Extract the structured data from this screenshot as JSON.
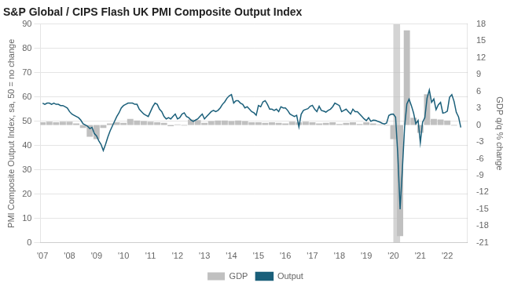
{
  "chart_data": {
    "type": "bar",
    "title": "S&P Global / CIPS Flash UK PMI Composite Output Index",
    "y_label": "PMI Composite Output Index, sa, 50 = no change",
    "y2_label": "GDP q/q % change",
    "xlim": [
      2006.92,
      2022.75
    ],
    "xticks": [
      {
        "value": 2007,
        "label": "'07"
      },
      {
        "value": 2008,
        "label": "'08"
      },
      {
        "value": 2009,
        "label": "'09"
      },
      {
        "value": 2010,
        "label": "'10"
      },
      {
        "value": 2011,
        "label": "'11"
      },
      {
        "value": 2012,
        "label": "'12"
      },
      {
        "value": 2013,
        "label": "'13"
      },
      {
        "value": 2014,
        "label": "'14"
      },
      {
        "value": 2015,
        "label": "'15"
      },
      {
        "value": 2016,
        "label": "'16"
      },
      {
        "value": 2017,
        "label": "'17"
      },
      {
        "value": 2018,
        "label": "'18"
      },
      {
        "value": 2019,
        "label": "'19"
      },
      {
        "value": 2020,
        "label": "'20"
      },
      {
        "value": 2021,
        "label": "'21"
      },
      {
        "value": 2022,
        "label": "'22"
      }
    ],
    "ylim": [
      0,
      90
    ],
    "yticks": [
      0,
      10,
      20,
      30,
      40,
      50,
      60,
      70,
      80,
      90
    ],
    "y2lim": [
      -21,
      18
    ],
    "y2ticks": [
      -21,
      -18,
      -15,
      -12,
      -9,
      -6,
      -3,
      0,
      3,
      6,
      9,
      12,
      15,
      18
    ],
    "grid": "y",
    "legend": "bottom",
    "shaded_x_range": [
      2020.0,
      2020.25
    ],
    "series": [
      {
        "name": "GDP",
        "type": "bar",
        "color": "#c0c0c0",
        "axis": "y2",
        "x": [
          2007.0,
          2007.25,
          2007.5,
          2007.75,
          2008.0,
          2008.25,
          2008.5,
          2008.75,
          2009.0,
          2009.25,
          2009.5,
          2009.75,
          2010.0,
          2010.25,
          2010.5,
          2010.75,
          2011.0,
          2011.25,
          2011.5,
          2011.75,
          2012.0,
          2012.25,
          2012.5,
          2012.75,
          2013.0,
          2013.25,
          2013.5,
          2013.75,
          2014.0,
          2014.25,
          2014.5,
          2014.75,
          2015.0,
          2015.25,
          2015.5,
          2015.75,
          2016.0,
          2016.25,
          2016.5,
          2016.75,
          2017.0,
          2017.25,
          2017.5,
          2017.75,
          2018.0,
          2018.25,
          2018.5,
          2018.75,
          2019.0,
          2019.25,
          2019.5,
          2019.75,
          2020.0,
          2020.25,
          2020.5,
          2020.75,
          2021.0,
          2021.25,
          2021.5,
          2021.75,
          2022.0,
          2022.25
        ],
        "values": [
          0.5,
          0.6,
          0.5,
          0.6,
          0.6,
          0.3,
          -0.5,
          -2.1,
          -2.5,
          -0.5,
          0.3,
          0.5,
          0.4,
          1.1,
          0.8,
          0.7,
          0.6,
          0.5,
          0.4,
          -0.2,
          0.1,
          -0.1,
          1.0,
          0.9,
          0.4,
          0.7,
          0.8,
          0.8,
          0.7,
          0.8,
          0.7,
          0.5,
          0.5,
          0.4,
          0.5,
          0.4,
          0.3,
          0.6,
          0.5,
          0.6,
          0.5,
          0.3,
          0.4,
          0.5,
          0.2,
          0.4,
          0.5,
          0.2,
          0.5,
          0.3,
          0.1,
          -0.1,
          -2.5,
          -19.8,
          16.9,
          1.3,
          -1.4,
          5.5,
          1.1,
          1.0,
          0.8,
          -0.1
        ]
      },
      {
        "name": "Output",
        "type": "line",
        "color": "#1a5f7a",
        "x": [
          2007.0,
          2007.083,
          2007.167,
          2007.25,
          2007.333,
          2007.417,
          2007.5,
          2007.583,
          2007.667,
          2007.75,
          2007.833,
          2007.917,
          2008.0,
          2008.083,
          2008.167,
          2008.25,
          2008.333,
          2008.417,
          2008.5,
          2008.583,
          2008.667,
          2008.75,
          2008.833,
          2008.917,
          2009.0,
          2009.083,
          2009.167,
          2009.25,
          2009.333,
          2009.417,
          2009.5,
          2009.583,
          2009.667,
          2009.75,
          2009.833,
          2009.917,
          2010.0,
          2010.083,
          2010.167,
          2010.25,
          2010.333,
          2010.417,
          2010.5,
          2010.583,
          2010.667,
          2010.75,
          2010.833,
          2010.917,
          2011.0,
          2011.083,
          2011.167,
          2011.25,
          2011.333,
          2011.417,
          2011.5,
          2011.583,
          2011.667,
          2011.75,
          2011.833,
          2011.917,
          2012.0,
          2012.083,
          2012.167,
          2012.25,
          2012.333,
          2012.417,
          2012.5,
          2012.583,
          2012.667,
          2012.75,
          2012.833,
          2012.917,
          2013.0,
          2013.083,
          2013.167,
          2013.25,
          2013.333,
          2013.417,
          2013.5,
          2013.583,
          2013.667,
          2013.75,
          2013.833,
          2013.917,
          2014.0,
          2014.083,
          2014.167,
          2014.25,
          2014.333,
          2014.417,
          2014.5,
          2014.583,
          2014.667,
          2014.75,
          2014.833,
          2014.917,
          2015.0,
          2015.083,
          2015.167,
          2015.25,
          2015.333,
          2015.417,
          2015.5,
          2015.583,
          2015.667,
          2015.75,
          2015.833,
          2015.917,
          2016.0,
          2016.083,
          2016.167,
          2016.25,
          2016.333,
          2016.417,
          2016.5,
          2016.583,
          2016.667,
          2016.75,
          2016.833,
          2016.917,
          2017.0,
          2017.083,
          2017.167,
          2017.25,
          2017.333,
          2017.417,
          2017.5,
          2017.583,
          2017.667,
          2017.75,
          2017.833,
          2017.917,
          2018.0,
          2018.083,
          2018.167,
          2018.25,
          2018.333,
          2018.417,
          2018.5,
          2018.583,
          2018.667,
          2018.75,
          2018.833,
          2018.917,
          2019.0,
          2019.083,
          2019.167,
          2019.25,
          2019.333,
          2019.417,
          2019.5,
          2019.583,
          2019.667,
          2019.75,
          2019.833,
          2019.917,
          2020.0,
          2020.083,
          2020.167,
          2020.25,
          2020.333,
          2020.417,
          2020.5,
          2020.583,
          2020.667,
          2020.75,
          2020.833,
          2020.917,
          2021.0,
          2021.083,
          2021.167,
          2021.25,
          2021.333,
          2021.417,
          2021.5,
          2021.583,
          2021.667,
          2021.75,
          2021.833,
          2021.917,
          2022.0,
          2022.083,
          2022.167,
          2022.25,
          2022.333,
          2022.417,
          2022.5
        ],
        "values": [
          57.5,
          57.0,
          57.5,
          57.5,
          57.0,
          57.5,
          57.0,
          57.0,
          56.5,
          56.5,
          56.0,
          55.5,
          54.0,
          53.0,
          52.5,
          52.0,
          51.5,
          50.5,
          49.0,
          48.5,
          48.0,
          47.0,
          47.5,
          45.0,
          44.0,
          42.0,
          40.5,
          38.0,
          40.5,
          43.5,
          46.0,
          48.0,
          50.0,
          52.0,
          53.5,
          55.5,
          56.5,
          57.0,
          57.5,
          57.5,
          57.5,
          57.0,
          57.0,
          55.0,
          54.0,
          53.0,
          52.5,
          52.0,
          54.0,
          56.0,
          57.5,
          57.0,
          55.0,
          54.0,
          52.0,
          51.0,
          51.5,
          51.0,
          52.0,
          53.0,
          51.0,
          51.5,
          53.0,
          53.5,
          52.0,
          51.5,
          50.5,
          50.0,
          50.5,
          51.0,
          52.0,
          53.0,
          51.0,
          52.0,
          53.0,
          54.0,
          54.5,
          54.0,
          54.5,
          55.5,
          57.0,
          58.0,
          59.5,
          60.5,
          61.0,
          57.5,
          58.5,
          58.5,
          57.5,
          57.0,
          55.5,
          56.0,
          55.0,
          54.0,
          53.5,
          52.5,
          56.5,
          56.0,
          58.0,
          58.5,
          57.0,
          55.0,
          55.0,
          54.5,
          55.0,
          54.0,
          56.0,
          55.5,
          55.5,
          54.5,
          53.0,
          52.5,
          52.0,
          52.5,
          47.7,
          52.9,
          54.5,
          54.9,
          55.2,
          56.2,
          56.6,
          55.0,
          54.0,
          56.2,
          54.5,
          54.2,
          53.8,
          54.5,
          55.0,
          56.0,
          57.5,
          57.0,
          56.5,
          54.0,
          54.5,
          55.0,
          54.0,
          53.0,
          55.0,
          54.0,
          54.0,
          53.0,
          52.0,
          51.0,
          50.3,
          51.5,
          50.0,
          50.5,
          50.4,
          50.0,
          49.7,
          49.2,
          48.9,
          49.3,
          52.4,
          52.9,
          53.0,
          51.7,
          36.0,
          13.8,
          30.0,
          47.7,
          57.1,
          59.1,
          56.5,
          53.4,
          49.0,
          50.4,
          41.2,
          49.6,
          51.5,
          59.6,
          62.9,
          57.8,
          59.2,
          54.8,
          56.8,
          57.8,
          53.4,
          53.6,
          54.2,
          59.9,
          61.0,
          58.2,
          53.7,
          51.8,
          47.5
        ]
      }
    ]
  }
}
